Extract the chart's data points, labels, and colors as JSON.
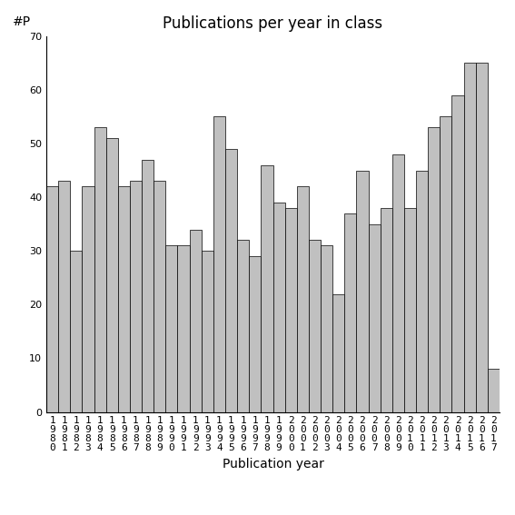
{
  "years": [
    "1980",
    "1981",
    "1982",
    "1983",
    "1984",
    "1985",
    "1986",
    "1987",
    "1988",
    "1989",
    "1990",
    "1991",
    "1992",
    "1993",
    "1994",
    "1995",
    "1996",
    "1997",
    "1998",
    "1999",
    "2000",
    "2001",
    "2002",
    "2003",
    "2004",
    "2005",
    "2006",
    "2007",
    "2008",
    "2009",
    "2010",
    "2011",
    "2012",
    "2013",
    "2014",
    "2015",
    "2016",
    "2017"
  ],
  "values": [
    42,
    43,
    30,
    42,
    53,
    51,
    42,
    43,
    47,
    43,
    31,
    31,
    34,
    30,
    55,
    49,
    32,
    29,
    46,
    39,
    38,
    42,
    32,
    31,
    22,
    37,
    45,
    35,
    38,
    48,
    38,
    45,
    53,
    55,
    59,
    65,
    65,
    8
  ],
  "bar_color": "#c0c0c0",
  "bar_edgecolor": "#000000",
  "title": "Publications per year in class",
  "xlabel": "Publication year",
  "ylabel": "#P",
  "ylim": [
    0,
    70
  ],
  "yticks": [
    0,
    10,
    20,
    30,
    40,
    50,
    60,
    70
  ],
  "background_color": "#ffffff",
  "title_fontsize": 12,
  "axis_fontsize": 10,
  "tick_fontsize": 8
}
